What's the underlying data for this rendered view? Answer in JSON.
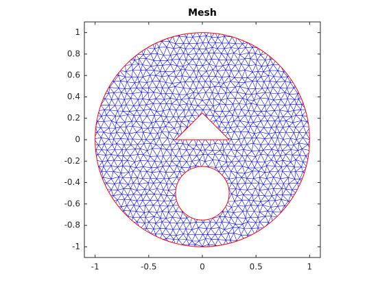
{
  "chart_data": {
    "type": "mesh",
    "title": "Mesh",
    "xlim": [
      -1.1,
      1.1
    ],
    "ylim": [
      -1.1,
      1.1
    ],
    "xticks": [
      -1,
      -0.5,
      0,
      0.5,
      1
    ],
    "yticks": [
      -1,
      -0.8,
      -0.6,
      -0.4,
      -0.2,
      0,
      0.2,
      0.4,
      0.6,
      0.8,
      1
    ],
    "mesh_color": "blue",
    "boundary_color": "red",
    "boundaries": [
      {
        "shape": "circle",
        "center": [
          0,
          0
        ],
        "radius": 1
      },
      {
        "shape": "circle",
        "center": [
          0,
          -0.5
        ],
        "radius": 0.25
      },
      {
        "shape": "polygon",
        "x": [
          -0.25,
          0.25,
          0
        ],
        "y": [
          0,
          0,
          0.25
        ]
      }
    ]
  }
}
